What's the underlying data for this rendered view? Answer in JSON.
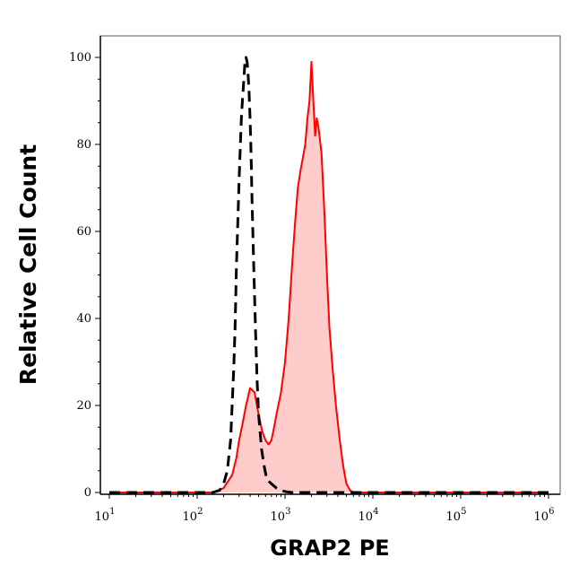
{
  "chart_data": {
    "type": "area",
    "title": "",
    "xlabel": "GRAP2 PE",
    "ylabel": "Relative Cell Count",
    "x_scale": "log",
    "xlim": [
      10,
      1000000
    ],
    "ylim": [
      0,
      100
    ],
    "x_ticks": [
      {
        "base": "10",
        "exp": "1",
        "value": 10
      },
      {
        "base": "10",
        "exp": "2",
        "value": 100
      },
      {
        "base": "10",
        "exp": "3",
        "value": 1000
      },
      {
        "base": "10",
        "exp": "4",
        "value": 10000
      },
      {
        "base": "10",
        "exp": "5",
        "value": 100000
      },
      {
        "base": "10",
        "exp": "6",
        "value": 1000000
      }
    ],
    "y_ticks": [
      0,
      20,
      40,
      60,
      80,
      100
    ],
    "grid": false,
    "legend": "none",
    "series": [
      {
        "style": "dashed",
        "color": "#000000",
        "fill": "none",
        "x": [
          10,
          100,
          150,
          180,
          200,
          220,
          240,
          250,
          260,
          270,
          280,
          290,
          300,
          310,
          320,
          330,
          340,
          350,
          360,
          370,
          380,
          390,
          400,
          410,
          420,
          440,
          460,
          480,
          500,
          540,
          580,
          620,
          700,
          800,
          900,
          1000,
          1200,
          1000000
        ],
        "values": [
          0,
          0,
          0,
          0.5,
          2,
          5,
          12,
          20,
          28,
          38,
          52,
          62,
          72,
          80,
          87,
          91,
          95,
          99,
          100,
          99,
          96,
          92,
          86,
          78,
          68,
          52,
          38,
          26,
          18,
          10,
          6,
          3,
          2,
          1,
          0.5,
          0.2,
          0,
          0
        ]
      },
      {
        "style": "solid",
        "color": "#ff0000",
        "fill": "#ffcccc",
        "x": [
          10,
          150,
          200,
          250,
          280,
          300,
          330,
          360,
          400,
          450,
          500,
          550,
          600,
          650,
          700,
          750,
          800,
          900,
          1000,
          1100,
          1200,
          1300,
          1400,
          1500,
          1600,
          1700,
          1800,
          1900,
          2000,
          2100,
          2200,
          2300,
          2400,
          2600,
          2800,
          3000,
          3200,
          3500,
          3800,
          4200,
          4600,
          5000,
          5500,
          6000,
          7000,
          1000000
        ],
        "values": [
          0,
          0,
          1,
          4,
          8,
          12,
          16,
          20,
          24,
          23,
          18,
          14,
          12,
          11,
          12,
          15,
          18,
          23,
          30,
          40,
          52,
          62,
          70,
          74,
          77,
          80,
          86,
          90,
          99,
          90,
          82,
          86,
          84,
          78,
          65,
          50,
          38,
          28,
          20,
          12,
          6,
          2,
          0.5,
          0,
          0,
          0
        ]
      }
    ]
  }
}
